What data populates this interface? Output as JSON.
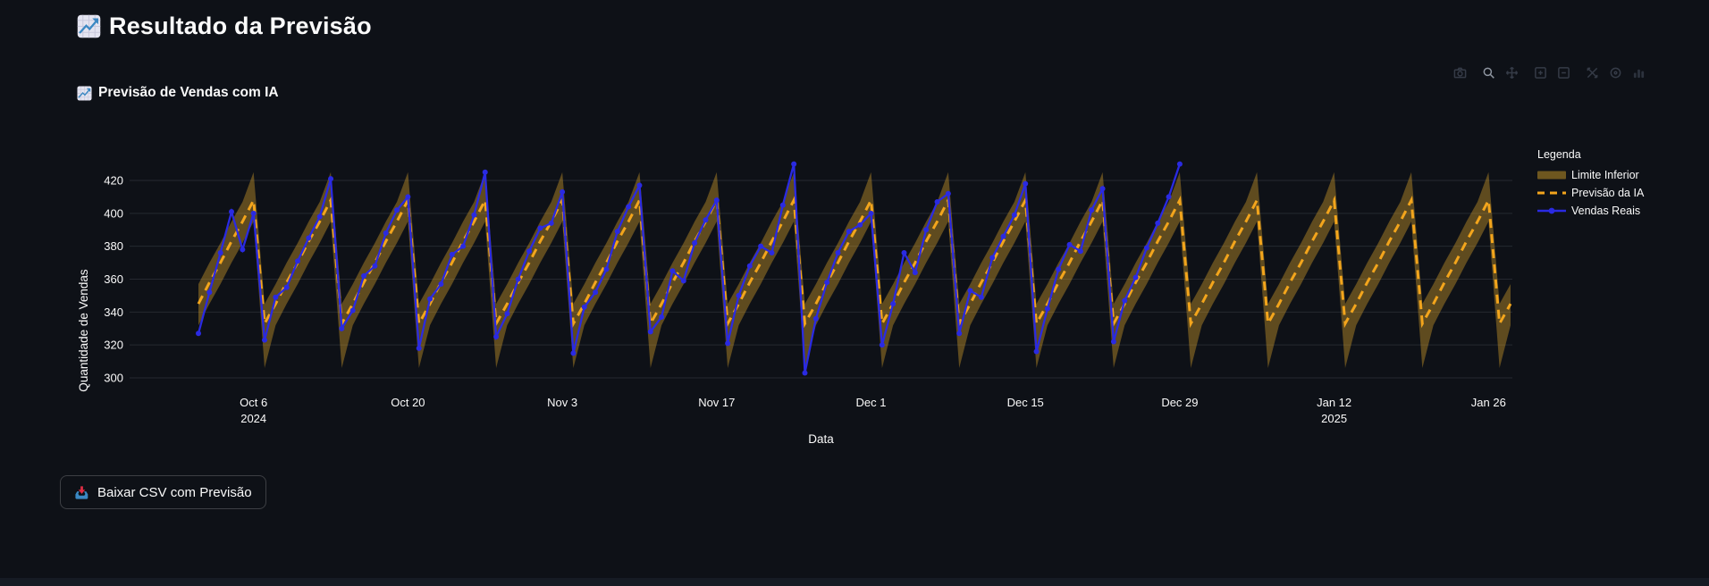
{
  "page": {
    "title": "Resultado da Previsão",
    "title_icon": "chart-increasing-emoji"
  },
  "chart": {
    "subtitle": "Previsão de Vendas com IA",
    "subtitle_icon": "chart-increasing-emoji"
  },
  "modebar_icons": [
    "download-plot",
    "zoom",
    "pan",
    "zoom-in",
    "zoom-out",
    "autoscale",
    "reset-axes",
    "plotly-logo"
  ],
  "download_button": {
    "icon": "inbox-tray-emoji",
    "label": "Baixar CSV com Previsão"
  },
  "chart_data": {
    "type": "line",
    "title": "Previsão de Vendas com IA",
    "xlabel": "Data",
    "ylabel": "Quantidade de Vendas",
    "grid": "horizontal-only",
    "ylim": [
      293,
      434
    ],
    "y_ticks": [
      300,
      320,
      340,
      360,
      380,
      400,
      420
    ],
    "start_date": "2024-10-01",
    "days": 120,
    "x_ticks": [
      {
        "label": "Oct 6",
        "sub": "2024",
        "day": 5
      },
      {
        "label": "Oct 20",
        "sub": "",
        "day": 19
      },
      {
        "label": "Nov 3",
        "sub": "",
        "day": 33
      },
      {
        "label": "Nov 17",
        "sub": "",
        "day": 47
      },
      {
        "label": "Dec 1",
        "sub": "",
        "day": 61
      },
      {
        "label": "Dec 15",
        "sub": "",
        "day": 75
      },
      {
        "label": "Dec 29",
        "sub": "",
        "day": 89
      },
      {
        "label": "Jan 12",
        "sub": "2025",
        "day": 103
      },
      {
        "label": "Jan 26",
        "sub": "",
        "day": 117
      }
    ],
    "colors": {
      "background": "#0e1117",
      "text": "#fafafa",
      "gridline": "rgba(173,181,196,0.15)",
      "band_fill": "rgba(229,170,45,0.38)",
      "forecast": "#f3a51c",
      "actual": "#2a2ae2"
    },
    "legend": {
      "title": "Legenda",
      "position": "right",
      "items": [
        {
          "label": "Limite Inferior",
          "type": "band",
          "color": "#6e571f"
        },
        {
          "label": "Previsão da IA",
          "type": "dashed-line",
          "color": "#f3a51c"
        },
        {
          "label": "Vendas Reais",
          "type": "line-marker",
          "color": "#2a2ae2"
        }
      ]
    },
    "series": {
      "lower": {
        "name": "Limite Inferior",
        "values": [
          332,
          345,
          357,
          370,
          382,
          395,
          306,
          332,
          345,
          357,
          370,
          382,
          395,
          306,
          332,
          345,
          357,
          370,
          382,
          395,
          306,
          332,
          345,
          357,
          370,
          382,
          395,
          306,
          332,
          345,
          357,
          370,
          382,
          395,
          306,
          332,
          345,
          357,
          370,
          382,
          395,
          306,
          332,
          345,
          357,
          370,
          382,
          395,
          306,
          332,
          345,
          357,
          370,
          382,
          395,
          306,
          332,
          345,
          357,
          370,
          382,
          395,
          306,
          332,
          345,
          357,
          370,
          382,
          395,
          306,
          332,
          345,
          357,
          370,
          382,
          395,
          306,
          332,
          345,
          357,
          370,
          382,
          395,
          306,
          332,
          345,
          357,
          370,
          382,
          395,
          306,
          332,
          345,
          357,
          370,
          382,
          395,
          306,
          332,
          345,
          357,
          370,
          382,
          395,
          306,
          332,
          345,
          357,
          370,
          382,
          395,
          306,
          332,
          345,
          357,
          370,
          382,
          395,
          306,
          332
        ]
      },
      "upper": {
        "name": "Limite Superior",
        "values": [
          357,
          370,
          382,
          395,
          407,
          425,
          345,
          357,
          370,
          382,
          395,
          407,
          425,
          345,
          357,
          370,
          382,
          395,
          407,
          425,
          345,
          357,
          370,
          382,
          395,
          407,
          425,
          345,
          357,
          370,
          382,
          395,
          407,
          425,
          345,
          357,
          370,
          382,
          395,
          407,
          425,
          345,
          357,
          370,
          382,
          395,
          407,
          425,
          345,
          357,
          370,
          382,
          395,
          407,
          425,
          345,
          357,
          370,
          382,
          395,
          407,
          425,
          345,
          357,
          370,
          382,
          395,
          407,
          425,
          345,
          357,
          370,
          382,
          395,
          407,
          425,
          345,
          357,
          370,
          382,
          395,
          407,
          425,
          345,
          357,
          370,
          382,
          395,
          407,
          425,
          345,
          357,
          370,
          382,
          395,
          407,
          425,
          345,
          357,
          370,
          382,
          395,
          407,
          425,
          345,
          357,
          370,
          382,
          395,
          407,
          425,
          345,
          357,
          370,
          382,
          395,
          407,
          425,
          345,
          357
        ]
      },
      "forecast": {
        "name": "Previsão da IA",
        "values": [
          345,
          358,
          370,
          383,
          395,
          408,
          333,
          345,
          358,
          370,
          383,
          395,
          408,
          333,
          345,
          358,
          370,
          383,
          395,
          408,
          333,
          345,
          358,
          370,
          383,
          395,
          408,
          333,
          345,
          358,
          370,
          383,
          395,
          408,
          333,
          345,
          358,
          370,
          383,
          395,
          408,
          333,
          345,
          358,
          370,
          383,
          395,
          408,
          333,
          345,
          358,
          370,
          383,
          395,
          408,
          333,
          345,
          358,
          370,
          383,
          395,
          408,
          333,
          345,
          358,
          370,
          383,
          395,
          408,
          333,
          345,
          358,
          370,
          383,
          395,
          408,
          333,
          345,
          358,
          370,
          383,
          395,
          408,
          333,
          345,
          358,
          370,
          383,
          395,
          408,
          333,
          345,
          358,
          370,
          383,
          395,
          408,
          333,
          345,
          358,
          370,
          383,
          395,
          408,
          333,
          345,
          358,
          370,
          383,
          395,
          408,
          333,
          345,
          358,
          370,
          383,
          395,
          408,
          333,
          345
        ]
      },
      "actual": {
        "name": "Vendas Reais",
        "values": [
          327,
          352,
          376,
          401,
          378,
          400,
          323,
          349,
          355,
          371,
          385,
          398,
          421,
          330,
          341,
          362,
          368,
          388,
          402,
          410,
          318,
          348,
          357,
          375,
          380,
          399,
          425,
          325,
          339,
          360,
          377,
          391,
          394,
          413,
          315,
          343,
          352,
          366,
          389,
          404,
          417,
          328,
          337,
          365,
          359,
          382,
          396,
          408,
          321,
          350,
          368,
          380,
          376,
          405,
          430,
          303,
          336,
          358,
          376,
          389,
          393,
          400,
          320,
          345,
          376,
          364,
          390,
          407,
          412,
          327,
          353,
          349,
          373,
          386,
          399,
          418,
          316,
          342,
          366,
          381,
          377,
          402,
          415,
          322,
          347,
          361,
          379,
          394,
          410,
          430
        ]
      }
    }
  }
}
